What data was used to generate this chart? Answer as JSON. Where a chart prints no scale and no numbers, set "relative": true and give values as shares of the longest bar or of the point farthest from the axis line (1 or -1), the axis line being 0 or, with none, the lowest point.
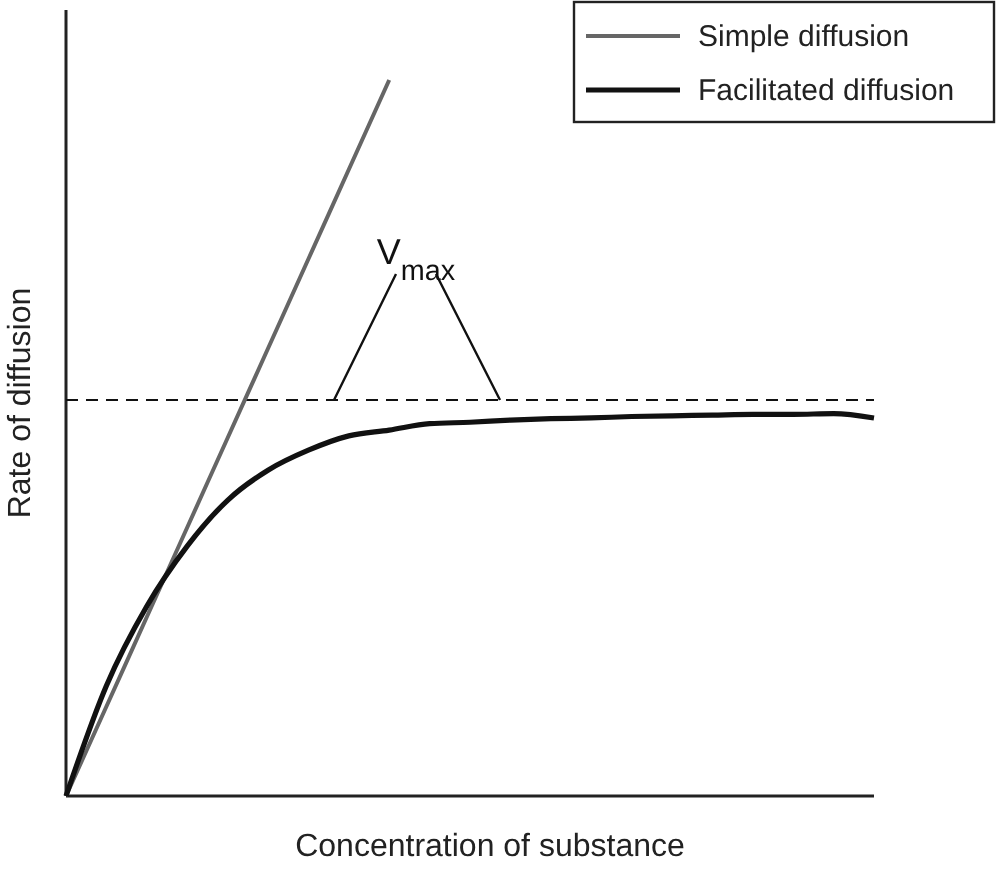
{
  "chart_data": {
    "type": "line",
    "relative": true,
    "xlabel": "Concentration of substance",
    "ylabel": "Rate of diffusion",
    "categories": [
      null,
      null,
      null,
      null,
      null,
      null,
      null,
      null,
      null,
      null,
      null,
      null,
      null,
      null,
      null,
      null,
      null,
      null,
      null,
      null,
      null
    ],
    "series": [
      {
        "name": "Simple diffusion",
        "color": "#666666",
        "values": [
          0,
          0.125,
          0.25,
          0.375,
          0.5,
          0.625,
          0.75,
          0.875,
          1,
          null,
          null,
          null,
          null,
          null,
          null,
          null,
          null,
          null,
          null,
          null,
          null
        ]
      },
      {
        "name": "Facilitated diffusion",
        "color": "#111111",
        "values": [
          0,
          0.154,
          0.265,
          0.349,
          0.413,
          0.455,
          0.483,
          0.503,
          0.511,
          0.52,
          0.522,
          0.525,
          0.527,
          0.528,
          0.53,
          0.531,
          0.532,
          0.533,
          0.533,
          0.534,
          0.528
        ]
      }
    ],
    "ref_lines": [
      {
        "axis": "y",
        "value": 0.553,
        "label": "V$_{max}$",
        "line_style": "dashed",
        "color": "#111111"
      }
    ],
    "legend": "top right",
    "marker": "none",
    "line_style": "solid"
  }
}
